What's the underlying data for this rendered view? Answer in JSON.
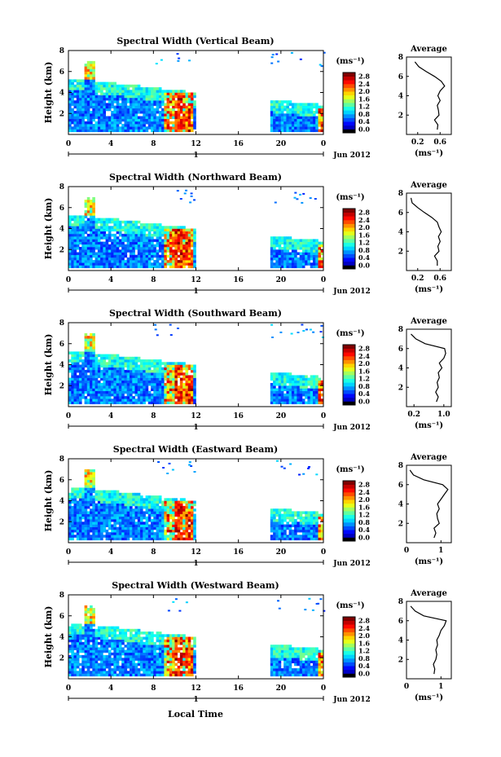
{
  "figure": {
    "shared_xlabel": "Local Time",
    "unit_label": "(ms⁻¹)"
  },
  "chart_data": [
    {
      "type": "heatmap",
      "title": "Spectral Width (Vertical Beam)",
      "ylabel": "Height (km)",
      "x_ticks": [
        "0",
        "4",
        "8",
        "12",
        "16",
        "20",
        "0"
      ],
      "day_label": "1",
      "date_label": "Jun 2012",
      "xlim": [
        0,
        24
      ],
      "ylim": [
        0,
        8
      ],
      "y_ticks": [
        "2",
        "4",
        "6",
        "8"
      ],
      "colorbar": {
        "ticks": [
          "0.0",
          "0.4",
          "0.8",
          "1.2",
          "1.6",
          "2.0",
          "2.4",
          "2.8"
        ],
        "range": [
          0,
          3.0
        ]
      },
      "average": {
        "title": "Average",
        "xlabel": "(ms⁻¹)",
        "x_ticks": [
          "0.2",
          "0.6"
        ],
        "xlim": [
          0.0,
          0.8
        ],
        "y_ticks": [
          "2",
          "4",
          "6",
          "8"
        ],
        "profile": [
          [
            0.55,
            0.5
          ],
          [
            0.56,
            1.0
          ],
          [
            0.5,
            1.5
          ],
          [
            0.58,
            2.0
          ],
          [
            0.57,
            2.5
          ],
          [
            0.55,
            3.0
          ],
          [
            0.6,
            3.5
          ],
          [
            0.56,
            4.0
          ],
          [
            0.6,
            4.5
          ],
          [
            0.68,
            5.0
          ],
          [
            0.62,
            5.5
          ],
          [
            0.5,
            6.0
          ],
          [
            0.35,
            6.5
          ],
          [
            0.22,
            7.0
          ],
          [
            0.15,
            7.5
          ]
        ]
      }
    },
    {
      "type": "heatmap",
      "title": "Spectral Width (Northward Beam)",
      "ylabel": "Height (km)",
      "x_ticks": [
        "0",
        "4",
        "8",
        "12",
        "16",
        "20",
        "0"
      ],
      "day_label": "1",
      "date_label": "Jun 2012",
      "xlim": [
        0,
        24
      ],
      "ylim": [
        0,
        8
      ],
      "y_ticks": [
        "2",
        "4",
        "6",
        "8"
      ],
      "colorbar": {
        "ticks": [
          "0.0",
          "0.4",
          "0.8",
          "1.2",
          "1.6",
          "2.0",
          "2.4",
          "2.8"
        ],
        "range": [
          0,
          3.0
        ]
      },
      "average": {
        "title": "Average",
        "xlabel": "(ms⁻¹)",
        "x_ticks": [
          "0.2",
          "0.6"
        ],
        "xlim": [
          0.0,
          0.8
        ],
        "y_ticks": [
          "2",
          "4",
          "6",
          "8"
        ],
        "profile": [
          [
            0.55,
            0.5
          ],
          [
            0.55,
            1.0
          ],
          [
            0.5,
            1.5
          ],
          [
            0.58,
            2.0
          ],
          [
            0.56,
            2.5
          ],
          [
            0.6,
            3.0
          ],
          [
            0.57,
            3.5
          ],
          [
            0.62,
            4.0
          ],
          [
            0.58,
            4.5
          ],
          [
            0.55,
            5.0
          ],
          [
            0.45,
            5.5
          ],
          [
            0.32,
            6.0
          ],
          [
            0.2,
            6.5
          ],
          [
            0.1,
            7.0
          ],
          [
            0.08,
            7.5
          ]
        ]
      }
    },
    {
      "type": "heatmap",
      "title": "Spectral Width (Southward Beam)",
      "ylabel": "Height (km)",
      "x_ticks": [
        "0",
        "4",
        "8",
        "12",
        "16",
        "20",
        "0"
      ],
      "day_label": "1",
      "date_label": "Jun 2012",
      "xlim": [
        0,
        24
      ],
      "ylim": [
        0,
        8
      ],
      "y_ticks": [
        "2",
        "4",
        "6",
        "8"
      ],
      "colorbar": {
        "ticks": [
          "0.0",
          "0.4",
          "0.8",
          "1.2",
          "1.6",
          "2.0",
          "2.4",
          "2.8"
        ],
        "range": [
          0,
          3.0
        ]
      },
      "average": {
        "title": "Average",
        "xlabel": "(ms⁻¹)",
        "x_ticks": [
          "0.2",
          "1.0"
        ],
        "xlim": [
          0.0,
          1.2
        ],
        "y_ticks": [
          "2",
          "4",
          "6",
          "8"
        ],
        "profile": [
          [
            0.8,
            0.5
          ],
          [
            0.85,
            1.0
          ],
          [
            0.78,
            1.5
          ],
          [
            0.85,
            2.0
          ],
          [
            0.82,
            2.5
          ],
          [
            0.88,
            3.0
          ],
          [
            0.85,
            3.5
          ],
          [
            0.95,
            4.0
          ],
          [
            0.88,
            4.5
          ],
          [
            1.0,
            5.0
          ],
          [
            1.05,
            5.5
          ],
          [
            1.02,
            6.0
          ],
          [
            0.5,
            6.5
          ],
          [
            0.25,
            7.0
          ],
          [
            0.12,
            7.5
          ]
        ]
      }
    },
    {
      "type": "heatmap",
      "title": "Spectral Width (Eastward Beam)",
      "ylabel": "Height (km)",
      "x_ticks": [
        "0",
        "4",
        "8",
        "12",
        "16",
        "20",
        "0"
      ],
      "day_label": "1",
      "date_label": "Jun 2012",
      "xlim": [
        0,
        24
      ],
      "ylim": [
        0,
        8
      ],
      "y_ticks": [
        "2",
        "4",
        "6",
        "8"
      ],
      "colorbar": {
        "ticks": [
          "0.0",
          "0.4",
          "0.8",
          "1.2",
          "1.6",
          "2.0",
          "2.4",
          "2.8"
        ],
        "range": [
          0,
          3.0
        ]
      },
      "average": {
        "title": "Average",
        "xlabel": "(ms⁻¹)",
        "x_ticks": [
          "0",
          "1"
        ],
        "xlim": [
          0.0,
          1.3
        ],
        "y_ticks": [
          "2",
          "4",
          "6",
          "8"
        ],
        "profile": [
          [
            0.8,
            0.5
          ],
          [
            0.85,
            1.0
          ],
          [
            0.8,
            1.5
          ],
          [
            0.95,
            2.0
          ],
          [
            0.9,
            2.5
          ],
          [
            0.88,
            3.0
          ],
          [
            0.95,
            3.5
          ],
          [
            0.9,
            4.0
          ],
          [
            1.0,
            4.5
          ],
          [
            1.1,
            5.0
          ],
          [
            1.2,
            5.5
          ],
          [
            1.05,
            6.0
          ],
          [
            0.5,
            6.5
          ],
          [
            0.2,
            7.0
          ],
          [
            0.1,
            7.5
          ]
        ]
      }
    },
    {
      "type": "heatmap",
      "title": "Spectral Width (Westward Beam)",
      "ylabel": "Height (km)",
      "x_ticks": [
        "0",
        "4",
        "8",
        "12",
        "16",
        "20",
        "0"
      ],
      "day_label": "1",
      "date_label": "Jun 2012",
      "xlim": [
        0,
        24
      ],
      "ylim": [
        0,
        8
      ],
      "y_ticks": [
        "2",
        "4",
        "6",
        "8"
      ],
      "colorbar": {
        "ticks": [
          "0.0",
          "0.4",
          "0.8",
          "1.2",
          "1.6",
          "2.0",
          "2.4",
          "2.8"
        ],
        "range": [
          0,
          3.0
        ]
      },
      "average": {
        "title": "Average",
        "xlabel": "(ms⁻¹)",
        "x_ticks": [
          "0",
          "1"
        ],
        "xlim": [
          0.0,
          1.3
        ],
        "y_ticks": [
          "2",
          "4",
          "6",
          "8"
        ],
        "profile": [
          [
            0.8,
            0.5
          ],
          [
            0.82,
            1.0
          ],
          [
            0.78,
            1.5
          ],
          [
            0.85,
            2.0
          ],
          [
            0.88,
            2.5
          ],
          [
            0.85,
            3.0
          ],
          [
            0.9,
            3.5
          ],
          [
            0.88,
            4.0
          ],
          [
            0.95,
            4.5
          ],
          [
            1.0,
            5.0
          ],
          [
            1.1,
            5.5
          ],
          [
            1.15,
            6.0
          ],
          [
            0.5,
            6.5
          ],
          [
            0.25,
            7.0
          ],
          [
            0.12,
            7.5
          ]
        ]
      }
    }
  ]
}
